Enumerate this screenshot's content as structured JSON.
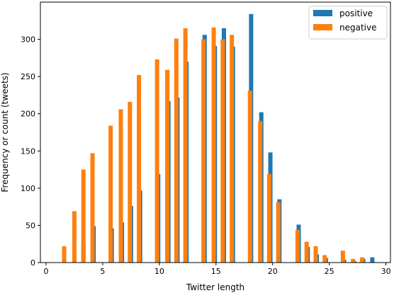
{
  "chart_data": {
    "type": "bar",
    "title": "",
    "xlabel": "Twitter length",
    "ylabel": "Frequency or count (tweets)",
    "xlim": [
      -0.5,
      30.4
    ],
    "ylim": [
      0,
      350
    ],
    "xticks": [
      0,
      5,
      10,
      15,
      20,
      25,
      30
    ],
    "yticks": [
      0,
      50,
      100,
      150,
      200,
      250,
      300
    ],
    "grid": false,
    "legend_position": "top-right",
    "series": [
      {
        "name": "positive",
        "color": "#1f77b4",
        "points": [
          [
            2.5,
            10
          ],
          [
            3.3,
            27
          ],
          [
            4.2,
            49
          ],
          [
            5.8,
            46
          ],
          [
            6.7,
            54
          ],
          [
            7.5,
            76
          ],
          [
            8.3,
            97
          ],
          [
            9.9,
            119
          ],
          [
            10.8,
            217
          ],
          [
            11.6,
            222
          ],
          [
            12.4,
            270
          ],
          [
            14.0,
            306
          ],
          [
            14.9,
            291
          ],
          [
            15.7,
            315
          ],
          [
            16.5,
            290
          ],
          [
            18.1,
            334
          ],
          [
            19.0,
            202
          ],
          [
            19.8,
            148
          ],
          [
            20.6,
            85
          ],
          [
            22.3,
            51
          ],
          [
            23.1,
            21
          ],
          [
            23.9,
            11
          ],
          [
            24.7,
            6
          ],
          [
            26.3,
            4
          ],
          [
            27.2,
            2
          ],
          [
            28.0,
            5
          ],
          [
            28.8,
            7
          ]
        ]
      },
      {
        "name": "negative",
        "color": "#ff7f0e",
        "points": [
          [
            1.6,
            22
          ],
          [
            2.5,
            69
          ],
          [
            3.3,
            125
          ],
          [
            4.1,
            147
          ],
          [
            5.7,
            184
          ],
          [
            6.6,
            206
          ],
          [
            7.4,
            216
          ],
          [
            8.2,
            252
          ],
          [
            9.8,
            273
          ],
          [
            10.7,
            259
          ],
          [
            11.5,
            301
          ],
          [
            12.3,
            315
          ],
          [
            13.9,
            300
          ],
          [
            14.8,
            316
          ],
          [
            15.6,
            300
          ],
          [
            16.4,
            306
          ],
          [
            18.0,
            231
          ],
          [
            18.9,
            190
          ],
          [
            19.7,
            119
          ],
          [
            20.5,
            81
          ],
          [
            22.2,
            44
          ],
          [
            23.0,
            28
          ],
          [
            23.8,
            22
          ],
          [
            24.6,
            10
          ],
          [
            26.2,
            16
          ],
          [
            27.1,
            5
          ],
          [
            27.9,
            7
          ]
        ]
      }
    ]
  }
}
